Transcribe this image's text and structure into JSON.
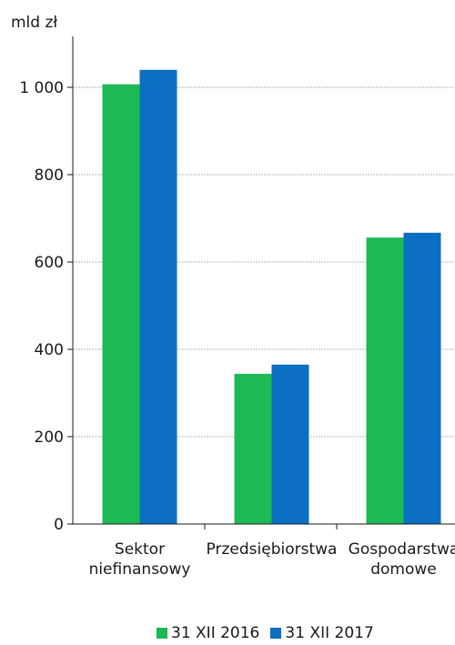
{
  "chart_data": {
    "type": "bar",
    "title": "",
    "ylabel": "mld zł",
    "ylim": [
      0,
      1100
    ],
    "yticks": [
      0,
      200,
      400,
      600,
      800,
      1000
    ],
    "ytick_labels": [
      "0",
      "200",
      "400",
      "600",
      "800",
      "1 000"
    ],
    "categories": [
      [
        "Sektor",
        "niefinansowy"
      ],
      [
        "Przedsiębiorstwa"
      ],
      [
        "Gospodarstwa",
        "domowe"
      ]
    ],
    "series": [
      {
        "name": "31 XII 2016",
        "color": "#1db954",
        "values": [
          1007,
          344,
          656
        ]
      },
      {
        "name": "31 XII 2017",
        "color": "#0a6fc2",
        "values": [
          1040,
          365,
          667
        ]
      }
    ],
    "grid": true,
    "grid_color": "#b5b5b5",
    "legend_position": "bottom"
  }
}
